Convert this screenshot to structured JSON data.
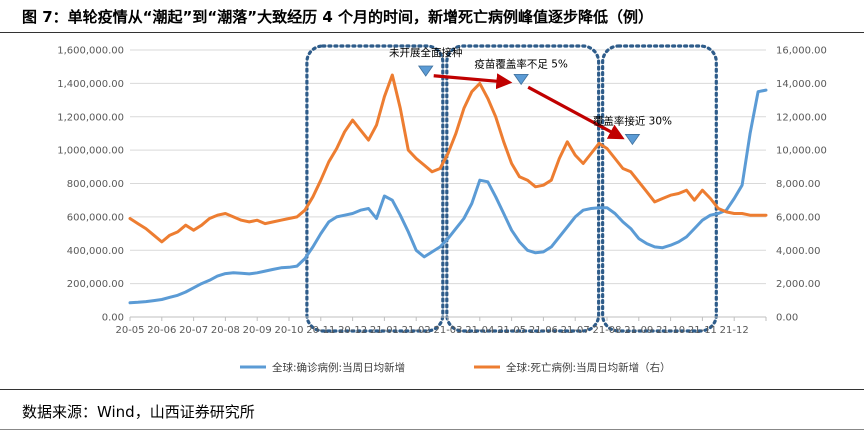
{
  "title": "图 7：单轮疫情从“潮起”到“潮落”大致经历 4 个月的时间，新增死亡病例峰值逐步降低（例）",
  "source": "数据来源：Wind，山西证券研究所",
  "colors": {
    "cases": "#5B9BD5",
    "deaths": "#ED7D31",
    "arrow": "#C00000",
    "box": "#2E5C8A",
    "marker": "#5B9BD5"
  },
  "chart_data": {
    "type": "line",
    "title": "",
    "categories": [
      "20-05",
      "20-06",
      "20-07",
      "20-08",
      "20-09",
      "20-10",
      "20-11",
      "20-12",
      "21-01",
      "21-02",
      "21-03",
      "21-04",
      "21-05",
      "21-06",
      "21-07",
      "21-08",
      "21-09",
      "21-10",
      "21-11",
      "21-12"
    ],
    "left_axis": {
      "ylim": [
        0,
        1600000
      ],
      "ticks": [
        "0.00",
        "200,000.00",
        "400,000.00",
        "600,000.00",
        "800,000.00",
        "1,000,000.00",
        "1,200,000.00",
        "1,400,000.00",
        "1,600,000.00"
      ]
    },
    "right_axis": {
      "ylim": [
        0,
        16000
      ],
      "ticks": [
        "0.00",
        "2,000.00",
        "4,000.00",
        "6,000.00",
        "8,000.00",
        "10,000.00",
        "12,000.00",
        "14,000.00",
        "16,000.00"
      ]
    },
    "series": [
      {
        "name": "全球:确诊病例:当周日均新增",
        "axis": "left",
        "x": [
          0,
          0.25,
          0.5,
          0.75,
          1,
          1.25,
          1.5,
          1.75,
          2,
          2.25,
          2.5,
          2.75,
          3,
          3.25,
          3.5,
          3.75,
          4,
          4.25,
          4.5,
          4.75,
          5,
          5.25,
          5.5,
          5.75,
          6,
          6.25,
          6.5,
          6.75,
          7,
          7.25,
          7.5,
          7.75,
          8,
          8.25,
          8.5,
          8.75,
          9,
          9.25,
          9.5,
          9.75,
          10,
          10.25,
          10.5,
          10.75,
          11,
          11.25,
          11.5,
          11.75,
          12,
          12.25,
          12.5,
          12.75,
          13,
          13.25,
          13.5,
          13.75,
          14,
          14.25,
          14.5,
          14.75,
          15,
          15.25,
          15.5,
          15.75,
          16,
          16.25,
          16.5,
          16.75,
          17,
          17.25,
          17.5,
          17.75,
          18,
          18.25,
          18.5,
          18.75,
          19,
          19.25,
          19.5,
          19.75,
          20
        ],
        "values": [
          85000,
          88000,
          92000,
          98000,
          105000,
          118000,
          130000,
          150000,
          175000,
          200000,
          220000,
          245000,
          260000,
          265000,
          262000,
          258000,
          265000,
          275000,
          285000,
          295000,
          298000,
          305000,
          350000,
          420000,
          500000,
          570000,
          600000,
          610000,
          620000,
          640000,
          650000,
          590000,
          725000,
          700000,
          610000,
          510000,
          400000,
          360000,
          390000,
          420000,
          470000,
          530000,
          590000,
          680000,
          820000,
          810000,
          720000,
          620000,
          520000,
          450000,
          400000,
          385000,
          390000,
          420000,
          480000,
          540000,
          600000,
          640000,
          650000,
          655000,
          655000,
          620000,
          570000,
          530000,
          470000,
          440000,
          420000,
          415000,
          430000,
          450000,
          480000,
          530000,
          580000,
          610000,
          620000,
          640000,
          710000,
          790000,
          1100000,
          1350000,
          1360000
        ]
      },
      {
        "name": "全球:死亡病例:当周日均新增（右）",
        "axis": "right",
        "x": [
          0,
          0.25,
          0.5,
          0.75,
          1,
          1.25,
          1.5,
          1.75,
          2,
          2.25,
          2.5,
          2.75,
          3,
          3.25,
          3.5,
          3.75,
          4,
          4.25,
          4.5,
          4.75,
          5,
          5.25,
          5.5,
          5.75,
          6,
          6.25,
          6.5,
          6.75,
          7,
          7.25,
          7.5,
          7.75,
          8,
          8.25,
          8.5,
          8.75,
          9,
          9.25,
          9.5,
          9.75,
          10,
          10.25,
          10.5,
          10.75,
          11,
          11.25,
          11.5,
          11.75,
          12,
          12.25,
          12.5,
          12.75,
          13,
          13.25,
          13.5,
          13.75,
          14,
          14.25,
          14.5,
          14.75,
          15,
          15.25,
          15.5,
          15.75,
          16,
          16.25,
          16.5,
          16.75,
          17,
          17.25,
          17.5,
          17.75,
          18,
          18.25,
          18.5,
          18.75,
          19,
          19.25,
          19.5,
          19.75,
          20
        ],
        "values": [
          5900,
          5600,
          5300,
          4900,
          4500,
          4900,
          5100,
          5500,
          5200,
          5500,
          5900,
          6100,
          6200,
          6000,
          5800,
          5700,
          5800,
          5600,
          5700,
          5800,
          5900,
          6000,
          6400,
          7200,
          8200,
          9300,
          10100,
          11100,
          11800,
          11200,
          10600,
          11500,
          13200,
          14500,
          12500,
          10000,
          9500,
          9100,
          8700,
          8900,
          9800,
          11000,
          12500,
          13500,
          14000,
          13100,
          12000,
          10500,
          9200,
          8400,
          8200,
          7800,
          7900,
          8200,
          9500,
          10500,
          9700,
          9200,
          9800,
          10400,
          10100,
          9500,
          8900,
          8700,
          8100,
          7500,
          6900,
          7100,
          7300,
          7400,
          7600,
          7000,
          7600,
          7100,
          6500,
          6300,
          6200,
          6200,
          6100,
          6100,
          6100
        ]
      }
    ],
    "annotations": [
      {
        "text": "未开展全面接种",
        "at": {
          "x": 9.3,
          "y": 14500
        },
        "axis": "right",
        "style": "normal"
      },
      {
        "text": "疫苗覆盖率不足 5%",
        "at": {
          "x": 12.3,
          "y": 14000
        },
        "axis": "right",
        "style": "normal"
      },
      {
        "text": "覆盖率接近 30%",
        "at": {
          "x": 15.8,
          "y": 10400
        },
        "axis": "right",
        "style": "normal"
      }
    ],
    "peak_markers": [
      {
        "x": 9.3,
        "y": 14500,
        "axis": "right"
      },
      {
        "x": 12.3,
        "y": 14000,
        "axis": "right"
      },
      {
        "x": 15.8,
        "y": 10400,
        "axis": "right"
      }
    ],
    "period_boxes": [
      {
        "x_from": 5.5,
        "x_to": 9.9,
        "label": ""
      },
      {
        "x_from": 9.9,
        "x_to": 14.8,
        "label": ""
      },
      {
        "x_from": 14.8,
        "x_to": 18.5,
        "label": ""
      }
    ],
    "legend": {
      "position": "bottom",
      "entries": [
        "全球:确诊病例:当周日均新增",
        "全球:死亡病例:当周日均新增（右）"
      ]
    }
  }
}
